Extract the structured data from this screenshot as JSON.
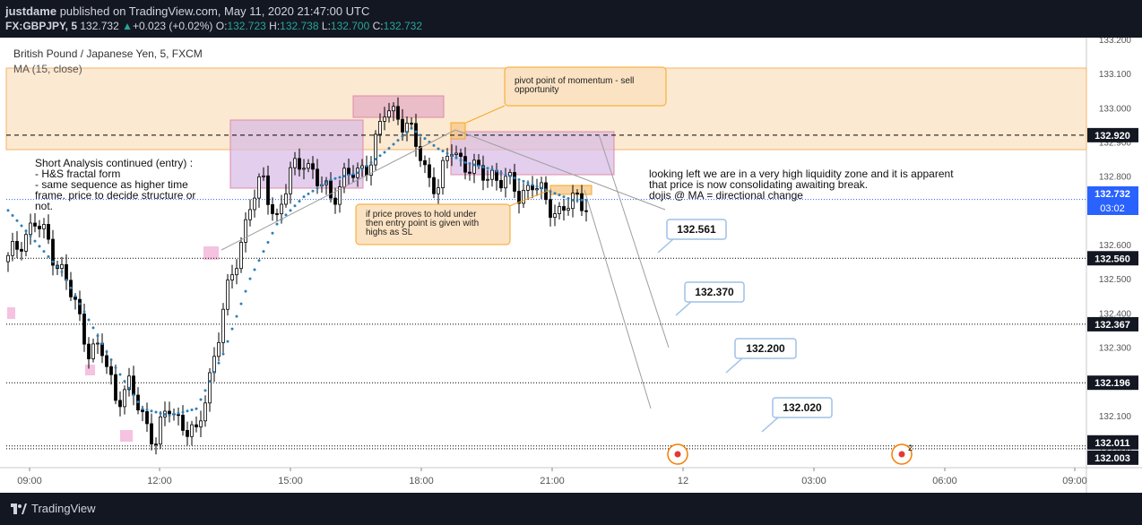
{
  "header": {
    "author": "justdame",
    "published_text": "published on TradingView.com, May 11, 2020 21:47:00 UTC",
    "symbol": "FX:GBPJPY, 5",
    "last": "132.732",
    "change": "+0.023 (+0.02%)",
    "o_label": "O:",
    "o": "132.723",
    "h_label": "H:",
    "h": "132.738",
    "l_label": "L:",
    "l": "132.700",
    "c_label": "C:",
    "c": "132.732"
  },
  "legend": {
    "instrument": "British Pound / Japanese Yen, 5, FXCM",
    "indicator": "MA (15, close)"
  },
  "annotations": {
    "short_analysis": [
      "Short Analysis continued (entry) :",
      "- H&S fractal form",
      "- same sequence as higher time",
      "frame. price to decide structure or",
      "not."
    ],
    "pivot_note": [
      "pivot point of momentum - sell",
      "opportunity"
    ],
    "hold_note": [
      "if price proves to hold under",
      "then entry point is given with",
      "highs as SL"
    ],
    "liquidity_note": [
      "looking left we are in a very high liquidity zone and it is apparent",
      "that price is now consolidating awaiting break.",
      "dojis @ MA = directional change"
    ],
    "targets": [
      "132.561",
      "132.370",
      "132.200",
      "132.020"
    ],
    "event_badge": "2"
  },
  "price_axis": {
    "ticks": [
      "133.200",
      "133.100",
      "133.000",
      "132.900",
      "132.800",
      "132.700",
      "132.600",
      "132.500",
      "132.400",
      "132.300",
      "132.200",
      "132.100",
      "132.000"
    ],
    "level_labels": [
      "132.920",
      "132.560",
      "132.367",
      "132.196",
      "132.011",
      "132.003"
    ],
    "current_price": "132.732",
    "countdown": "03:02"
  },
  "time_axis": {
    "ticks": [
      "09:00",
      "12:00",
      "15:00",
      "18:00",
      "21:00",
      "12",
      "03:00",
      "06:00",
      "09:00"
    ]
  },
  "footer": {
    "brand": "TradingView"
  },
  "colors": {
    "up": "#26a69a",
    "candle": "#000000",
    "ma": "#2f7fb5",
    "zone": "#f5a623",
    "box_purple": "#b39ddb",
    "box_pink": "#e8a0b4",
    "label_bg": "#131722"
  },
  "chart_data": {
    "type": "candlestick",
    "symbol": "GBPJPY",
    "interval": "5",
    "ylim": [
      131.98,
      133.22
    ],
    "x_ticks": [
      "09:00",
      "12:00",
      "15:00",
      "18:00",
      "21:00",
      "12",
      "03:00",
      "06:00",
      "09:00"
    ],
    "horizontal_levels": [
      132.92,
      132.56,
      132.367,
      132.196,
      132.011,
      132.003
    ],
    "resistance_zone": [
      132.87,
      133.11
    ],
    "targets": [
      132.561,
      132.37,
      132.2,
      132.02
    ],
    "last_price": 132.732,
    "close_path": [
      [
        0,
        132.55
      ],
      [
        3,
        132.62
      ],
      [
        6,
        132.66
      ],
      [
        9,
        132.61
      ],
      [
        12,
        132.52
      ],
      [
        15,
        132.42
      ],
      [
        18,
        132.3
      ],
      [
        21,
        132.28
      ],
      [
        24,
        132.16
      ],
      [
        27,
        132.18
      ],
      [
        30,
        132.1
      ],
      [
        33,
        132.03
      ],
      [
        36,
        132.12
      ],
      [
        39,
        132.08
      ],
      [
        42,
        132.03
      ],
      [
        45,
        132.22
      ],
      [
        48,
        132.4
      ],
      [
        51,
        132.56
      ],
      [
        54,
        132.72
      ],
      [
        57,
        132.78
      ],
      [
        60,
        132.68
      ],
      [
        63,
        132.8
      ],
      [
        66,
        132.86
      ],
      [
        69,
        132.78
      ],
      [
        72,
        132.74
      ],
      [
        75,
        132.8
      ],
      [
        78,
        132.8
      ],
      [
        81,
        132.86
      ],
      [
        84,
        132.98
      ],
      [
        87,
        132.99
      ],
      [
        90,
        132.92
      ],
      [
        93,
        132.82
      ],
      [
        96,
        132.77
      ],
      [
        99,
        132.88
      ],
      [
        102,
        132.84
      ],
      [
        105,
        132.8
      ],
      [
        108,
        132.81
      ],
      [
        111,
        132.78
      ],
      [
        114,
        132.75
      ],
      [
        117,
        132.78
      ],
      [
        120,
        132.72
      ],
      [
        123,
        132.7
      ],
      [
        126,
        132.72
      ],
      [
        129,
        132.73
      ]
    ],
    "ma_path": [
      [
        0,
        132.7
      ],
      [
        6,
        132.61
      ],
      [
        12,
        132.52
      ],
      [
        18,
        132.38
      ],
      [
        24,
        132.24
      ],
      [
        30,
        132.12
      ],
      [
        36,
        132.1
      ],
      [
        42,
        132.12
      ],
      [
        48,
        132.28
      ],
      [
        54,
        132.5
      ],
      [
        60,
        132.66
      ],
      [
        66,
        132.74
      ],
      [
        72,
        132.79
      ],
      [
        78,
        132.81
      ],
      [
        84,
        132.87
      ],
      [
        90,
        132.94
      ],
      [
        96,
        132.88
      ],
      [
        102,
        132.84
      ],
      [
        108,
        132.82
      ],
      [
        114,
        132.79
      ],
      [
        120,
        132.76
      ],
      [
        126,
        132.73
      ],
      [
        129,
        132.73
      ]
    ]
  }
}
